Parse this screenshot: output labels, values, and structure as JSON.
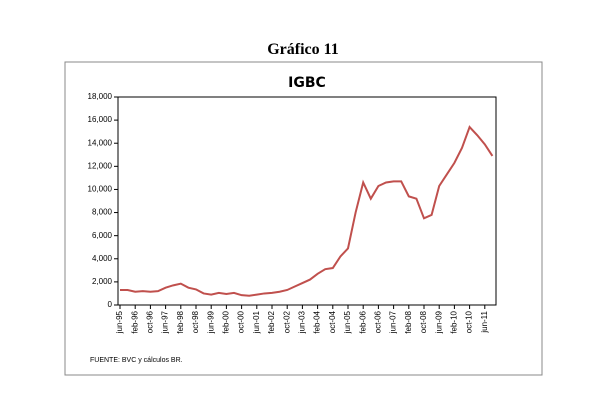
{
  "chart_data": {
    "type": "line",
    "page_title": "Gráfico 11",
    "title": "IGBC",
    "source": "FUENTE: BVC y cálculos BR.",
    "categories": [
      "jun-95",
      null,
      "feb-96",
      null,
      "oct-96",
      null,
      "jun-97",
      null,
      "feb-98",
      null,
      "oct-98",
      null,
      "jun-99",
      null,
      "feb-00",
      null,
      "oct-00",
      null,
      "jun-01",
      null,
      "feb-02",
      null,
      "oct-02",
      null,
      "jun-03",
      null,
      "feb-04",
      null,
      "oct-04",
      null,
      "jun-05",
      null,
      "feb-06",
      null,
      "oct-06",
      null,
      "jun-07",
      null,
      "feb-08",
      null,
      "oct-08",
      null,
      "jun-09",
      null,
      "feb-10",
      null,
      "oct-10",
      null,
      "jun-11",
      null
    ],
    "series": [
      {
        "name": "IGBC",
        "color": "#c0504d",
        "values": [
          1300,
          1300,
          1150,
          1200,
          1150,
          1200,
          1500,
          1700,
          1850,
          1500,
          1350,
          1000,
          900,
          1050,
          950,
          1050,
          850,
          800,
          900,
          1000,
          1050,
          1150,
          1300,
          1600,
          1900,
          2200,
          2700,
          3100,
          3200,
          4200,
          4900,
          8000,
          10600,
          9200,
          10300,
          10600,
          10700,
          10700,
          9400,
          9200,
          7500,
          7800,
          10300,
          11300,
          12300,
          13600,
          15400,
          14700,
          13900,
          12900
        ]
      }
    ],
    "ylim": [
      0,
      18000
    ],
    "yticks": [
      {
        "value": 0,
        "label": "0"
      },
      {
        "value": 2000,
        "label": "2,000"
      },
      {
        "value": 4000,
        "label": "4,000"
      },
      {
        "value": 6000,
        "label": "6,000"
      },
      {
        "value": 8000,
        "label": "8,000"
      },
      {
        "value": 10000,
        "label": "10,000"
      },
      {
        "value": 12000,
        "label": "12,000"
      },
      {
        "value": 14000,
        "label": "14,000"
      },
      {
        "value": 16000,
        "label": "16,000"
      },
      {
        "value": 18000,
        "label": "18,000"
      }
    ]
  }
}
